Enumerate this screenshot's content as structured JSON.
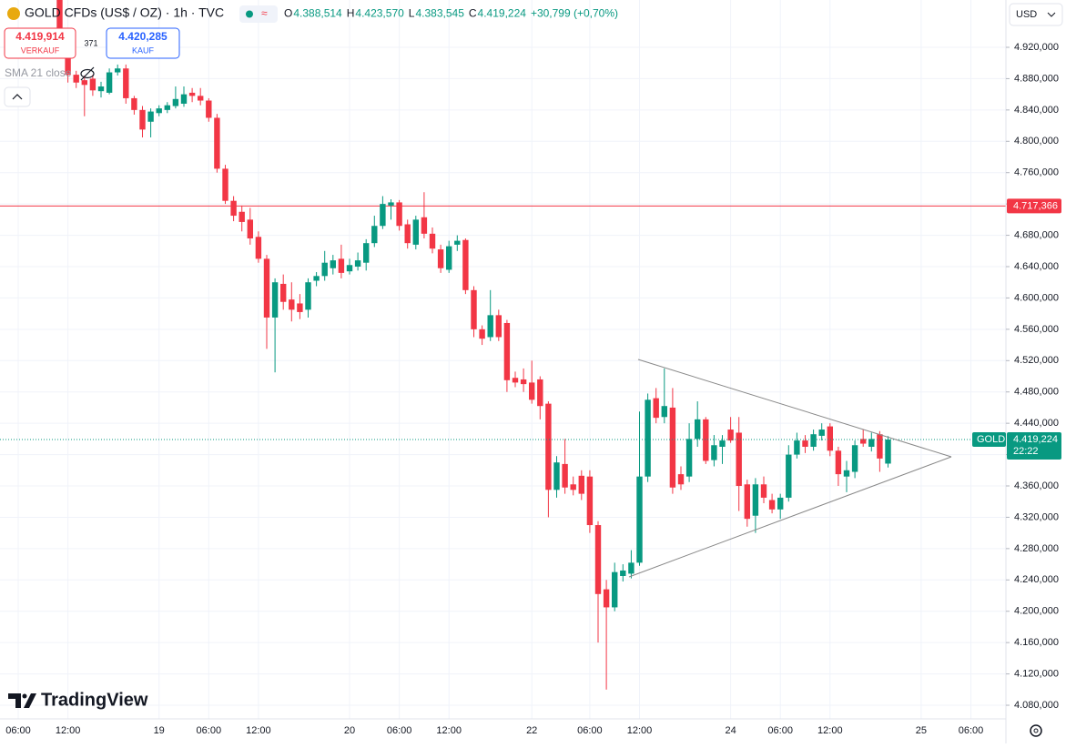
{
  "chart_data": {
    "type": "candlestick",
    "title": "GOLD CFDs (US$ / OZ) · 1h · TVC",
    "ohlc_legend": [
      {
        "key": "O",
        "value": "4.388,514"
      },
      {
        "key": "H",
        "value": "4.423,570"
      },
      {
        "key": "L",
        "value": "4.383,545"
      },
      {
        "key": "C",
        "value": "4.419,224"
      }
    ],
    "change": "+30,799 (+0,70%)",
    "sell": {
      "price": "4.419,914",
      "label": "VERKAUF"
    },
    "spread": "371",
    "buy": {
      "price": "4.420,285",
      "label": "KAUF"
    },
    "indicator": "SMA 21 close",
    "currency": "USD",
    "watermark": "TradingView",
    "up_color": "#089981",
    "down_color": "#f23645",
    "grid": true,
    "categories": [
      "06:00",
      null,
      null,
      null,
      null,
      null,
      "12:00",
      null,
      null,
      null,
      null,
      null,
      null,
      null,
      null,
      null,
      null,
      "19",
      null,
      null,
      null,
      null,
      null,
      "06:00",
      null,
      null,
      null,
      null,
      null,
      "12:00",
      null,
      null,
      null,
      null,
      null,
      null,
      null,
      null,
      null,
      null,
      "20",
      null,
      null,
      null,
      null,
      null,
      "06:00",
      null,
      null,
      null,
      null,
      null,
      "12:00",
      null,
      null,
      null,
      null,
      null,
      null,
      null,
      null,
      null,
      "22",
      null,
      null,
      null,
      null,
      null,
      null,
      "06:00",
      null,
      null,
      null,
      null,
      null,
      "12:00",
      null,
      null,
      null,
      null,
      null,
      null,
      null,
      null,
      null,
      null,
      "24",
      null,
      null,
      null,
      null,
      null,
      "06:00",
      null,
      null,
      null,
      null,
      null,
      "12:00",
      null,
      null,
      null,
      null,
      null,
      null,
      null,
      null,
      null,
      null,
      "25",
      null,
      null,
      null,
      null,
      null,
      "06:00"
    ],
    "open": [
      null,
      null,
      null,
      null,
      null,
      4990,
      4935,
      4885,
      4878,
      4880,
      4864,
      4862,
      4888,
      4893,
      4855,
      4840,
      4825,
      4836,
      4840,
      4845,
      4848,
      4862,
      4858,
      4852,
      4830,
      4765,
      4724,
      4710,
      4700,
      4678,
      4650,
      4575,
      4618,
      4598,
      4593,
      4585,
      4622,
      4628,
      4638,
      4650,
      4634,
      4640,
      4645,
      4670,
      4692,
      4718,
      4722,
      4694,
      4668,
      4703,
      4682,
      4662,
      4636,
      4668,
      4674,
      4610,
      4560,
      4550,
      4578,
      4568,
      4498,
      4496,
      4492,
      4496,
      4465,
      4355,
      4388,
      4362,
      4373,
      4372,
      4310,
      4228,
      4205,
      4245,
      4248,
      4262,
      4372,
      4472,
      4448,
      4460,
      4375,
      4372,
      4420,
      4445,
      4393,
      4410,
      4432,
      4428,
      4362,
      4322,
      4362,
      4342,
      4330,
      4345,
      4400,
      4418,
      4410,
      4424,
      4436,
      4405,
      4372,
      4378,
      4420,
      4410,
      4426,
      4388.514,
      null,
      null,
      null,
      null,
      null,
      null,
      null,
      null,
      null,
      null
    ],
    "high": [
      null,
      null,
      null,
      null,
      null,
      5000,
      4945,
      4890,
      4884,
      4885,
      4876,
      4893,
      4898,
      4898,
      4858,
      4845,
      4842,
      4846,
      4850,
      4870,
      4870,
      4868,
      4868,
      4855,
      4835,
      4770,
      4730,
      4718,
      4715,
      4685,
      4655,
      4625,
      4630,
      4620,
      4605,
      4625,
      4633,
      4660,
      4655,
      4668,
      4650,
      4658,
      4675,
      4705,
      4730,
      4726,
      4725,
      4700,
      4705,
      4735,
      4690,
      4668,
      4673,
      4680,
      4676,
      4615,
      4565,
      4610,
      4585,
      4572,
      4506,
      4510,
      4520,
      4500,
      4468,
      4398,
      4420,
      4372,
      4380,
      4380,
      4315,
      4240,
      4262,
      4260,
      4278,
      4455,
      4478,
      4485,
      4510,
      4485,
      4385,
      4440,
      4468,
      4448,
      4425,
      4425,
      4448,
      4448,
      4368,
      4370,
      4372,
      4350,
      4350,
      4412,
      4428,
      4425,
      4432,
      4440,
      4440,
      4410,
      4392,
      4418,
      4432,
      4428,
      4430,
      4423.57,
      null,
      null,
      null,
      null,
      null,
      null,
      null,
      null,
      null,
      null
    ],
    "low": [
      null,
      null,
      null,
      null,
      null,
      4925,
      4875,
      4868,
      4832,
      4858,
      4856,
      4860,
      4884,
      4848,
      4834,
      4805,
      4805,
      4832,
      4836,
      4842,
      4844,
      4850,
      4846,
      4825,
      4760,
      4720,
      4698,
      4685,
      4668,
      4645,
      4535,
      4505,
      4585,
      4570,
      4573,
      4575,
      4615,
      4622,
      4630,
      4625,
      4630,
      4635,
      4635,
      4665,
      4688,
      4700,
      4686,
      4663,
      4662,
      4676,
      4657,
      4632,
      4632,
      4660,
      4605,
      4550,
      4540,
      4545,
      4545,
      4480,
      4486,
      4480,
      4465,
      4445,
      4320,
      4345,
      4350,
      4348,
      4342,
      4300,
      4160,
      4100,
      4200,
      4238,
      4242,
      4258,
      4365,
      4440,
      4440,
      4350,
      4355,
      4365,
      4410,
      4388,
      4385,
      4388,
      4415,
      4328,
      4308,
      4300,
      4338,
      4325,
      4318,
      4340,
      4395,
      4402,
      4405,
      4418,
      4398,
      4360,
      4352,
      4370,
      4410,
      4404,
      4378,
      4383.545,
      null,
      null,
      null,
      null,
      null,
      null,
      null,
      null,
      null,
      null
    ],
    "close": [
      null,
      null,
      null,
      null,
      null,
      4935,
      4885,
      4875,
      4872,
      4865,
      4870,
      4888,
      4893,
      4855,
      4840,
      4815,
      4838,
      4842,
      4846,
      4854,
      4860,
      4858,
      4852,
      4830,
      4765,
      4724,
      4705,
      4697,
      4676,
      4650,
      4575,
      4620,
      4595,
      4585,
      4582,
      4620,
      4628,
      4645,
      4648,
      4632,
      4642,
      4648,
      4670,
      4692,
      4720,
      4722,
      4692,
      4670,
      4700,
      4682,
      4663,
      4638,
      4666,
      4673,
      4610,
      4560,
      4548,
      4578,
      4550,
      4495,
      4492,
      4490,
      4470,
      4462,
      4355,
      4390,
      4358,
      4355,
      4350,
      4310,
      4222,
      4205,
      4250,
      4252,
      4262,
      4372,
      4470,
      4447,
      4462,
      4358,
      4362,
      4420,
      4445,
      4392,
      4412,
      4418,
      4418,
      4360,
      4318,
      4362,
      4345,
      4330,
      4345,
      4400,
      4418,
      4410,
      4426,
      4432,
      4405,
      4375,
      4380,
      4412,
      4414,
      4420,
      4395,
      4419.224,
      null,
      null,
      null,
      null,
      null,
      null,
      null,
      null,
      null,
      null
    ],
    "ylim": [
      4062.6,
      4980.4
    ],
    "yticks": [
      {
        "value": 4080,
        "label": "4.080,000"
      },
      {
        "value": 4120,
        "label": "4.120,000"
      },
      {
        "value": 4160,
        "label": "4.160,000"
      },
      {
        "value": 4200,
        "label": "4.200,000"
      },
      {
        "value": 4240,
        "label": "4.240,000"
      },
      {
        "value": 4280,
        "label": "4.280,000"
      },
      {
        "value": 4320,
        "label": "4.320,000"
      },
      {
        "value": 4360,
        "label": "4.360,000"
      },
      {
        "value": 4400,
        "label": "4.400,000"
      },
      {
        "value": 4440,
        "label": "4.440,000"
      },
      {
        "value": 4480,
        "label": "4.480,000"
      },
      {
        "value": 4520,
        "label": "4.520,000"
      },
      {
        "value": 4560,
        "label": "4.560,000"
      },
      {
        "value": 4600,
        "label": "4.600,000"
      },
      {
        "value": 4640,
        "label": "4.640,000"
      },
      {
        "value": 4680,
        "label": "4.680,000"
      },
      {
        "value": 4720,
        "label": "4.720,000"
      },
      {
        "value": 4760,
        "label": "4.760,000"
      },
      {
        "value": 4800,
        "label": "4.800,000"
      },
      {
        "value": 4840,
        "label": "4.840,000"
      },
      {
        "value": 4880,
        "label": "4.880,000"
      },
      {
        "value": 4920,
        "label": "4.920,000"
      }
    ],
    "price_lines": [
      {
        "value": 4717.366,
        "label": "4.717,366",
        "color": "#f23645"
      }
    ],
    "last_price": {
      "symbol": "GOLD",
      "value": 4419.224,
      "label": "4.419,224",
      "countdown": "22:22",
      "color": "#089981"
    }
  }
}
